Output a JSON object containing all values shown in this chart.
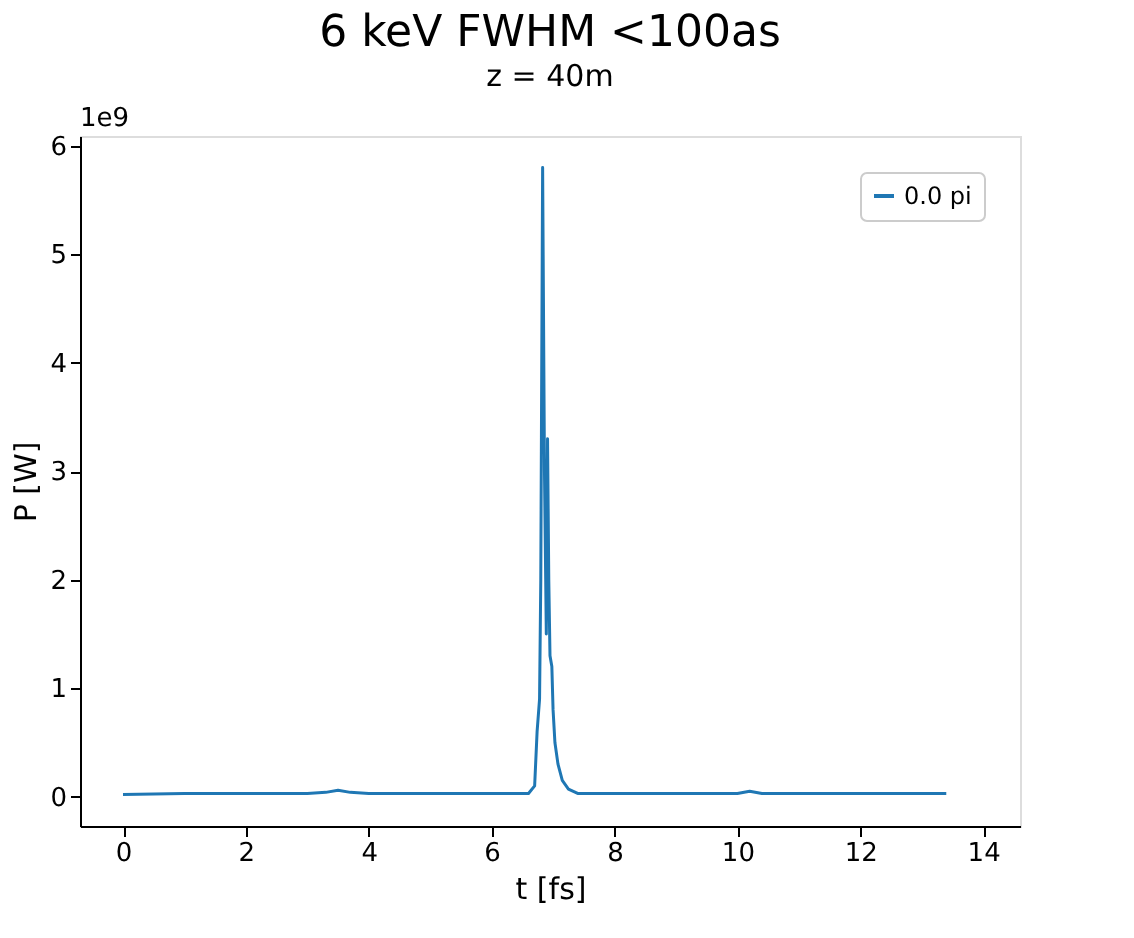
{
  "chart_data": {
    "type": "line",
    "title": "6 keV   FWHM <100as",
    "subtitle": "z = 40m",
    "xlabel": "t [fs]",
    "ylabel": "P [W]",
    "annotations": [
      "1e9"
    ],
    "series": [
      {
        "name": "0.0 pi",
        "color": "#1f77b4",
        "x": [
          0,
          1,
          2,
          3,
          3.3,
          3.5,
          3.7,
          4,
          5,
          6,
          6.6,
          6.7,
          6.74,
          6.78,
          6.8,
          6.83,
          6.86,
          6.89,
          6.91,
          6.93,
          6.95,
          6.98,
          7.0,
          7.03,
          7.08,
          7.15,
          7.25,
          7.4,
          8,
          9,
          10,
          10.2,
          10.4,
          11,
          12,
          13,
          13.4
        ],
        "values": [
          0.02,
          0.03,
          0.03,
          0.03,
          0.04,
          0.06,
          0.04,
          0.03,
          0.03,
          0.03,
          0.03,
          0.1,
          0.6,
          0.9,
          2.0,
          5.8,
          3.0,
          1.5,
          3.3,
          2.0,
          1.3,
          1.2,
          0.8,
          0.5,
          0.3,
          0.15,
          0.07,
          0.03,
          0.03,
          0.03,
          0.03,
          0.05,
          0.03,
          0.03,
          0.03,
          0.03,
          0.03
        ]
      }
    ],
    "xlim": [
      -0.7,
      14.6
    ],
    "xticks": [
      0,
      2,
      4,
      6,
      8,
      10,
      12,
      14
    ],
    "ylim": [
      -0.27,
      6.09
    ],
    "yticks": [
      0,
      1,
      2,
      3,
      4,
      5,
      6
    ],
    "legend": "top right",
    "grid": false,
    "line_style": "solid",
    "marker": "none"
  }
}
